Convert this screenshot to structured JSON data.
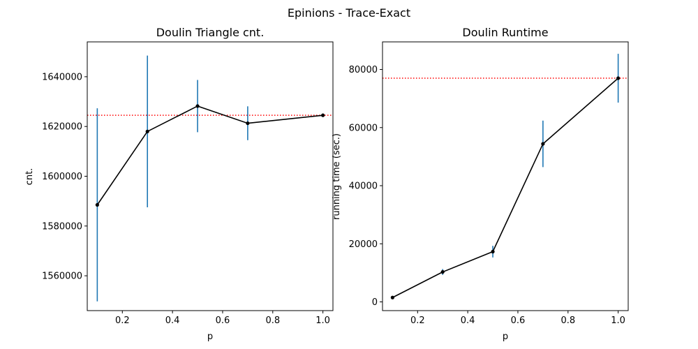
{
  "figure": {
    "suptitle": "Epinions - Trace-Exact"
  },
  "chart_data": [
    {
      "type": "line",
      "title": "Doulin Triangle cnt.",
      "xlabel": "p",
      "ylabel": "cnt.",
      "xlim": [
        0.06,
        1.04
      ],
      "ylim": [
        1546000,
        1654000
      ],
      "xticks": [
        0.2,
        0.4,
        0.6,
        0.8,
        1.0
      ],
      "xtick_labels": [
        "0.2",
        "0.4",
        "0.6",
        "0.8",
        "1.0"
      ],
      "yticks": [
        1560000,
        1580000,
        1600000,
        1620000,
        1640000
      ],
      "ytick_labels": [
        "1560000",
        "1580000",
        "1600000",
        "1620000",
        "1640000"
      ],
      "x": [
        0.1,
        0.3,
        0.5,
        0.7,
        1.0
      ],
      "y": [
        1588500,
        1618000,
        1628200,
        1621300,
        1624500
      ],
      "yerr": [
        38800,
        30500,
        10500,
        6800,
        0
      ],
      "reference_line": {
        "y": 1624500,
        "color": "#ff0000",
        "style": "dotted"
      },
      "line_color": "#000000",
      "errorbar_color": "#1f77b4",
      "grid": false
    },
    {
      "type": "line",
      "title": "Doulin Runtime",
      "xlabel": "p",
      "ylabel": "running time (sec.)",
      "xlim": [
        0.06,
        1.04
      ],
      "ylim": [
        -3000,
        89500
      ],
      "xticks": [
        0.2,
        0.4,
        0.6,
        0.8,
        1.0
      ],
      "xtick_labels": [
        "0.2",
        "0.4",
        "0.6",
        "0.8",
        "1.0"
      ],
      "yticks": [
        0,
        20000,
        40000,
        60000,
        80000
      ],
      "ytick_labels": [
        "0",
        "20000",
        "40000",
        "60000",
        "80000"
      ],
      "x": [
        0.1,
        0.3,
        0.5,
        0.7,
        1.0
      ],
      "y": [
        1500,
        10300,
        17300,
        54400,
        77000
      ],
      "yerr": [
        0,
        1000,
        2000,
        8000,
        8400
      ],
      "reference_line": {
        "y": 77000,
        "color": "#ff0000",
        "style": "dotted"
      },
      "line_color": "#000000",
      "errorbar_color": "#1f77b4",
      "grid": false
    }
  ]
}
